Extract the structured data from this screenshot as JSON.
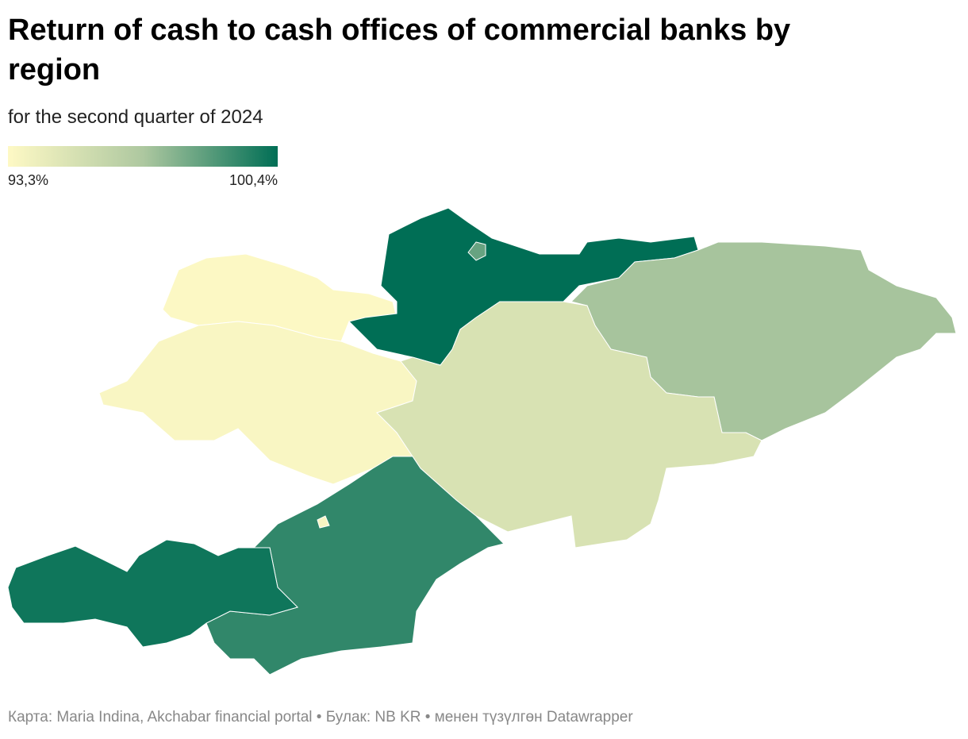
{
  "chart_data": {
    "type": "choropleth",
    "title": "Return of cash to cash offices of commercial banks by region",
    "subtitle": "for the second quarter of 2024",
    "colors": [
      "#fef9c5",
      "#aec8a0",
      "#006e55"
    ],
    "legend": {
      "min": {
        "value": 93.3,
        "label": "93,3%"
      },
      "max": {
        "value": 100.4,
        "label": "100,4%"
      }
    },
    "values": [
      93.4,
      93.5,
      100.4,
      98.3,
      97.0,
      95.0,
      99.4,
      100.1,
      93.6
    ],
    "footer": "Карта: Maria Indina, Akchabar financial portal • Булак: NB KR • менен түзүлгөн Datawrapper"
  }
}
